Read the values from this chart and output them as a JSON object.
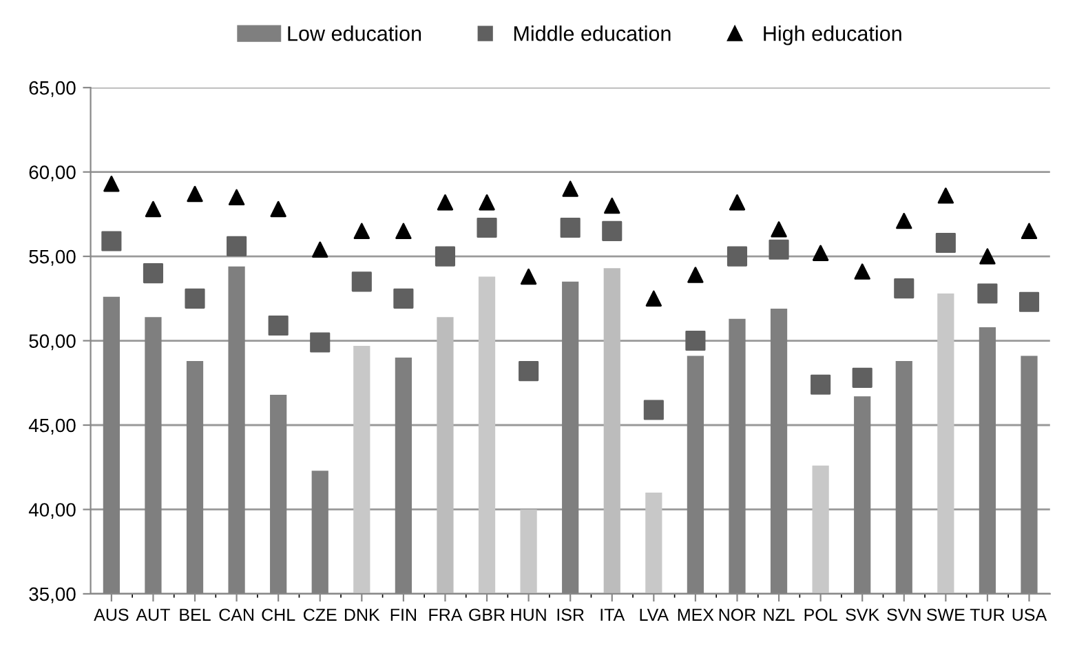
{
  "chart_data": {
    "type": "bar",
    "categories": [
      "AUS",
      "AUT",
      "BEL",
      "CAN",
      "CHL",
      "CZE",
      "DNK",
      "FIN",
      "FRA",
      "GBR",
      "HUN",
      "ISR",
      "ITA",
      "LVA",
      "MEX",
      "NOR",
      "NZL",
      "POL",
      "SVK",
      "SVN",
      "SWE",
      "TUR",
      "USA"
    ],
    "series": [
      {
        "name": "Low education",
        "color": "#7f7f7f",
        "colors": [
          "#7f7f7f",
          "#7f7f7f",
          "#7f7f7f",
          "#7f7f7f",
          "#7f7f7f",
          "#7f7f7f",
          "#c8c8c8",
          "#7f7f7f",
          "#bcbcbc",
          "#c8c8c8",
          "#c8c8c8",
          "#7f7f7f",
          "#bcbcbc",
          "#c8c8c8",
          "#7f7f7f",
          "#7f7f7f",
          "#7f7f7f",
          "#c8c8c8",
          "#7f7f7f",
          "#7f7f7f",
          "#c8c8c8",
          "#7f7f7f",
          "#7f7f7f"
        ],
        "values": [
          52.6,
          51.4,
          48.8,
          54.4,
          46.8,
          42.3,
          49.7,
          49.0,
          51.4,
          53.8,
          40.0,
          53.5,
          54.3,
          41.0,
          49.1,
          51.3,
          51.9,
          42.6,
          46.7,
          48.8,
          52.8,
          50.8,
          49.1
        ]
      },
      {
        "name": "Middle education",
        "type": "scatter",
        "marker": "square",
        "color": "#606060",
        "values": [
          55.9,
          54.0,
          52.5,
          55.6,
          50.9,
          49.9,
          53.5,
          52.5,
          55.0,
          56.7,
          48.2,
          56.7,
          56.5,
          45.9,
          50.0,
          55.0,
          55.4,
          47.4,
          47.8,
          53.1,
          55.8,
          52.8,
          52.3
        ]
      },
      {
        "name": "High education",
        "type": "scatter",
        "marker": "triangle",
        "color": "#000000",
        "values": [
          59.3,
          57.8,
          58.7,
          58.5,
          57.8,
          55.4,
          56.5,
          56.5,
          58.2,
          58.2,
          53.8,
          59.0,
          58.0,
          52.5,
          53.9,
          58.2,
          56.6,
          55.2,
          54.1,
          57.1,
          58.6,
          55.0,
          56.5
        ]
      }
    ],
    "ylim": [
      35,
      65
    ],
    "yticks": [
      {
        "value": 35,
        "label": "35,00"
      },
      {
        "value": 40,
        "label": "40,00"
      },
      {
        "value": 45,
        "label": "45,00"
      },
      {
        "value": 50,
        "label": "50,00"
      },
      {
        "value": 55,
        "label": "55,00"
      },
      {
        "value": 60,
        "label": "60,00"
      },
      {
        "value": 65,
        "label": "65,00"
      }
    ],
    "grid": "y",
    "legend": "top"
  }
}
